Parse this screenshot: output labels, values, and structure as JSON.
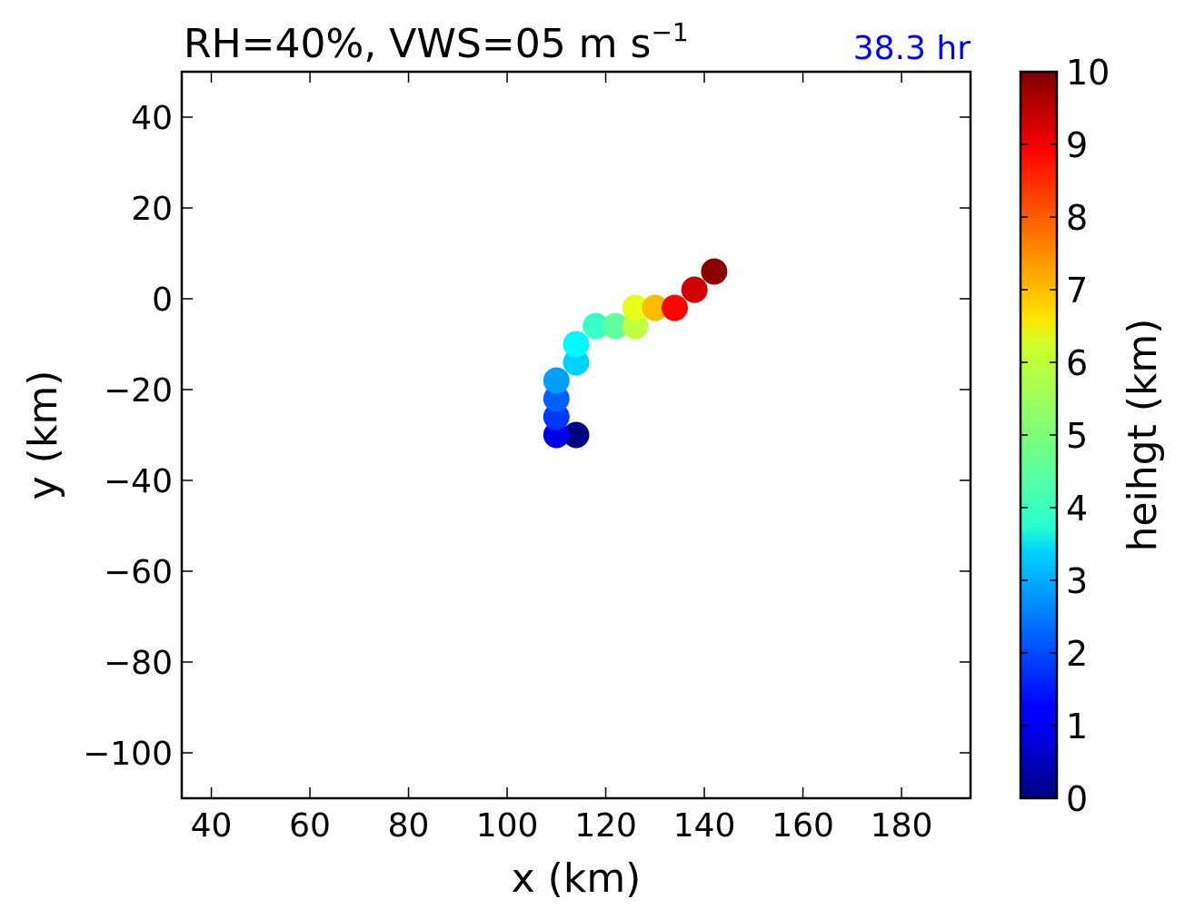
{
  "chart_data": {
    "type": "scatter",
    "title": "RH=40%, VWS=05 m s",
    "title_superscript": "−1",
    "annotation": "38.3 hr",
    "xlabel": "x (km)",
    "ylabel": "y (km)",
    "xlim": [
      34,
      194
    ],
    "ylim": [
      -110,
      50
    ],
    "xticks": [
      40,
      60,
      80,
      100,
      120,
      140,
      160,
      180
    ],
    "yticks": [
      40,
      20,
      0,
      -20,
      -40,
      -60,
      -80,
      -100
    ],
    "xtick_labels": [
      "40",
      "60",
      "80",
      "100",
      "120",
      "140",
      "160",
      "180"
    ],
    "ytick_labels": [
      "40",
      "20",
      "0",
      "−20",
      "−40",
      "−60",
      "−80",
      "−100"
    ],
    "grid": false,
    "colorbar": {
      "label": "heihgt (km)",
      "colormap": "jet",
      "range": [
        0,
        10
      ],
      "ticks": [
        "0",
        "1",
        "2",
        "3",
        "4",
        "5",
        "6",
        "7",
        "8",
        "9",
        "10"
      ]
    },
    "points": [
      {
        "x": 114,
        "y": -30,
        "height": 0.0
      },
      {
        "x": 110,
        "y": -30,
        "height": 1.0
      },
      {
        "x": 110,
        "y": -26,
        "height": 1.8
      },
      {
        "x": 110,
        "y": -22,
        "height": 2.2
      },
      {
        "x": 110,
        "y": -18,
        "height": 2.8
      },
      {
        "x": 114,
        "y": -14,
        "height": 3.3
      },
      {
        "x": 114,
        "y": -10,
        "height": 3.7
      },
      {
        "x": 118,
        "y": -6,
        "height": 4.3
      },
      {
        "x": 122,
        "y": -6,
        "height": 4.7
      },
      {
        "x": 126,
        "y": -6,
        "height": 5.6
      },
      {
        "x": 126,
        "y": -2,
        "height": 6.0
      },
      {
        "x": 130,
        "y": -2,
        "height": 6.9
      },
      {
        "x": 134,
        "y": -2,
        "height": 8.7
      },
      {
        "x": 138,
        "y": 2,
        "height": 9.2
      },
      {
        "x": 142,
        "y": 6,
        "height": 9.9
      }
    ]
  }
}
